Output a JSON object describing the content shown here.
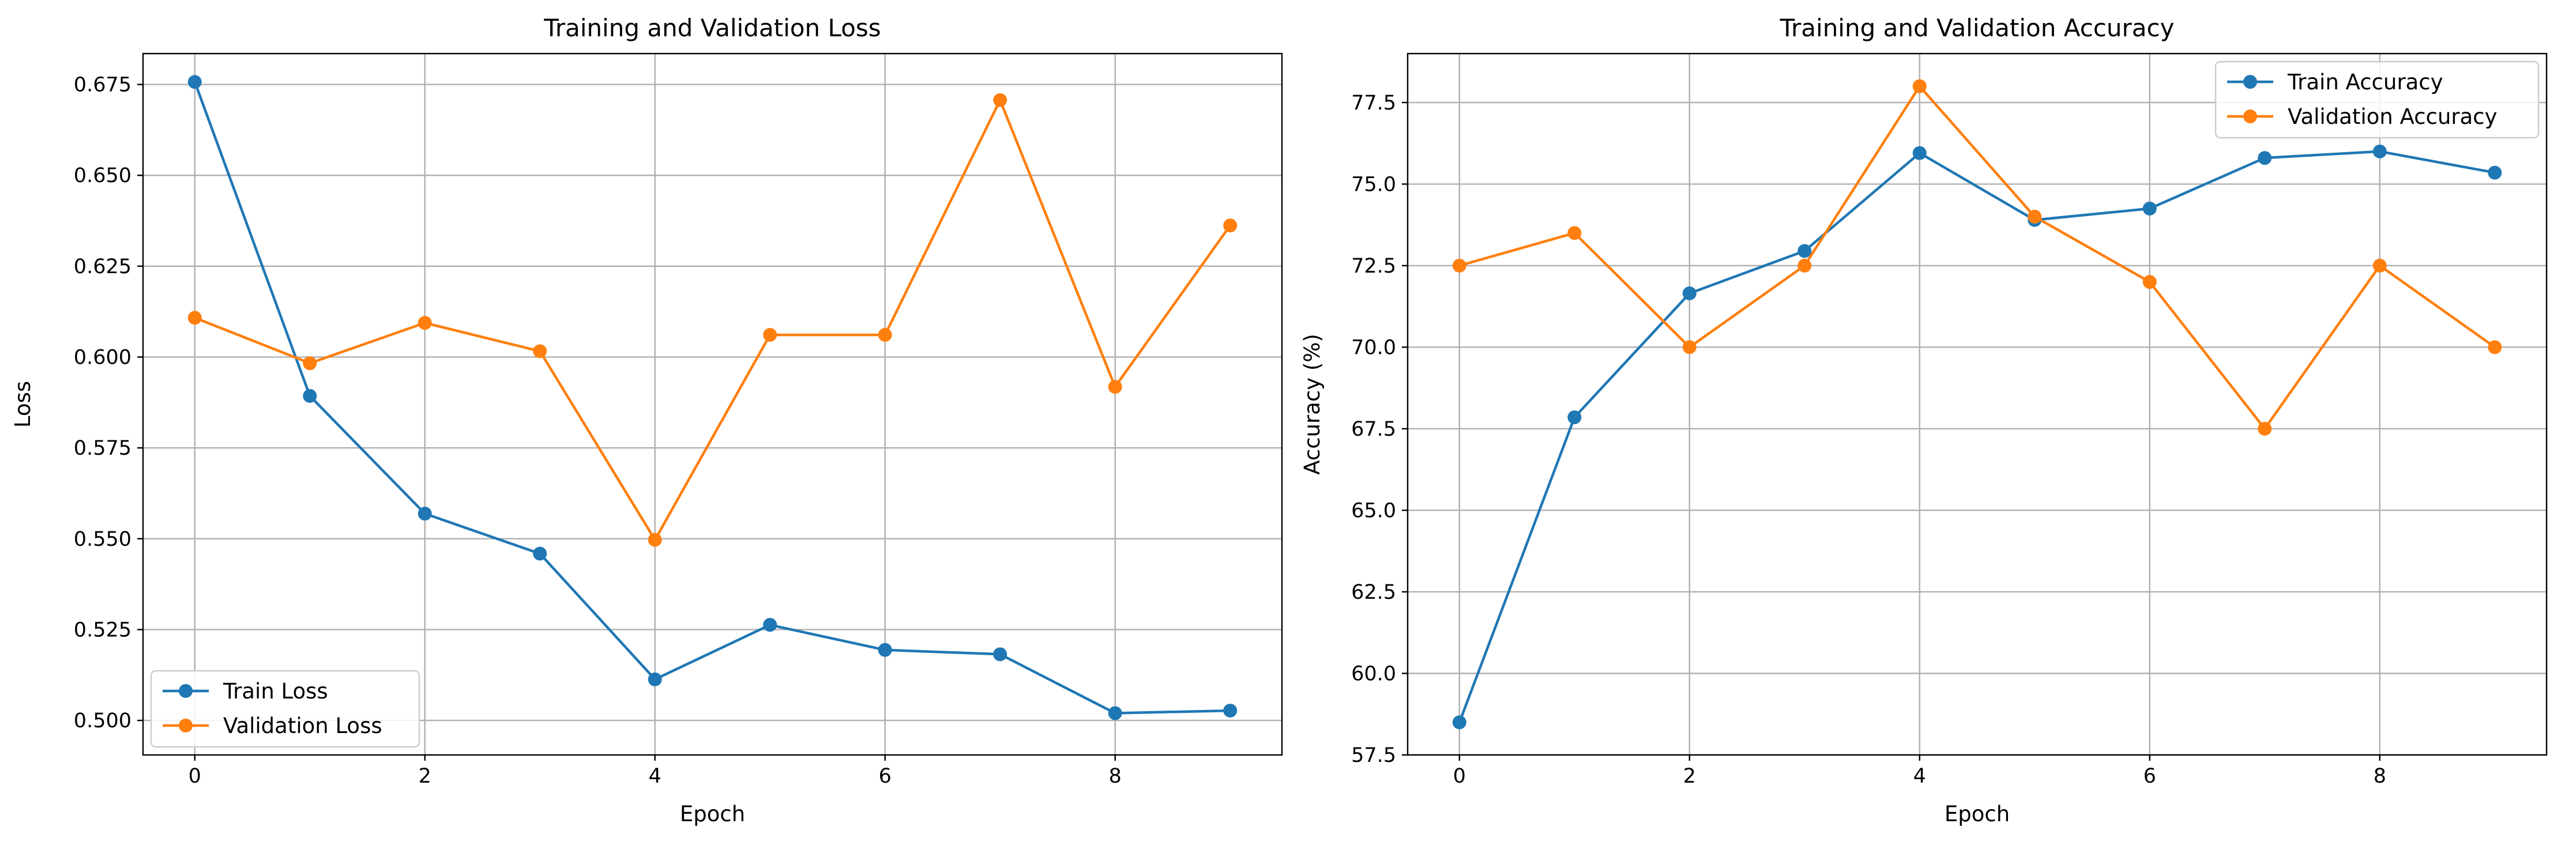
{
  "chart_data": [
    {
      "type": "line",
      "title": "Training and Validation Loss",
      "xlabel": "Epoch",
      "ylabel": "Loss",
      "xlim": [
        -0.45,
        9.45
      ],
      "ylim": [
        0.4905,
        0.6835
      ],
      "xticks": [
        0,
        2,
        4,
        6,
        8
      ],
      "xtick_labels": [
        "0",
        "2",
        "4",
        "6",
        "8"
      ],
      "yticks": [
        0.5,
        0.525,
        0.55,
        0.575,
        0.6,
        0.625,
        0.65,
        0.675
      ],
      "ytick_labels": [
        "0.500",
        "0.525",
        "0.550",
        "0.575",
        "0.600",
        "0.625",
        "0.650",
        "0.675"
      ],
      "grid": true,
      "legend_position": "lower-left",
      "x": [
        0,
        1,
        2,
        3,
        4,
        5,
        6,
        7,
        8,
        9
      ],
      "series": [
        {
          "name": "Train Loss",
          "color": "#1f77b4",
          "values": [
            0.6757,
            0.5893,
            0.5569,
            0.5459,
            0.5113,
            0.5263,
            0.5194,
            0.5182,
            0.502,
            0.5027
          ]
        },
        {
          "name": "Validation Loss",
          "color": "#ff7f0e",
          "values": [
            0.6108,
            0.5983,
            0.6094,
            0.6016,
            0.5497,
            0.6061,
            0.6061,
            0.6707,
            0.5918,
            0.6362
          ]
        }
      ]
    },
    {
      "type": "line",
      "title": "Training and Validation Accuracy",
      "xlabel": "Epoch",
      "ylabel": "Accuracy (%)",
      "xlim": [
        -0.45,
        9.45
      ],
      "ylim": [
        57.5,
        79.0
      ],
      "xticks": [
        0,
        2,
        4,
        6,
        8
      ],
      "xtick_labels": [
        "0",
        "2",
        "4",
        "6",
        "8"
      ],
      "yticks": [
        57.5,
        60.0,
        62.5,
        65.0,
        67.5,
        70.0,
        72.5,
        75.0,
        77.5
      ],
      "ytick_labels": [
        "57.5",
        "60.0",
        "62.5",
        "65.0",
        "67.5",
        "70.0",
        "72.5",
        "75.0",
        "77.5"
      ],
      "grid": true,
      "legend_position": "upper-right",
      "x": [
        0,
        1,
        2,
        3,
        4,
        5,
        6,
        7,
        8,
        9
      ],
      "series": [
        {
          "name": "Train Accuracy",
          "color": "#1f77b4",
          "values": [
            58.5,
            67.85,
            71.65,
            72.95,
            75.95,
            73.9,
            74.25,
            75.8,
            76.0,
            75.35
          ]
        },
        {
          "name": "Validation Accuracy",
          "color": "#ff7f0e",
          "values": [
            72.5,
            73.5,
            70.0,
            72.5,
            78.0,
            74.0,
            72.0,
            67.5,
            72.5,
            70.0
          ]
        }
      ]
    }
  ]
}
